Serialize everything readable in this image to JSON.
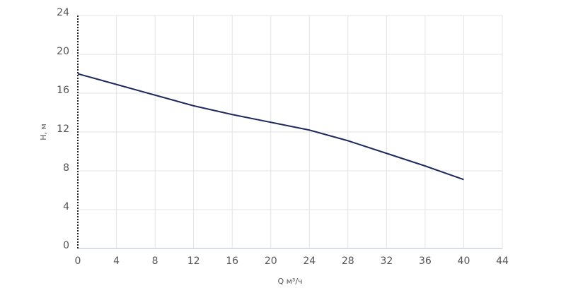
{
  "chart_data": {
    "type": "line",
    "x_label": "Q м³/ч",
    "y_label": "H, м",
    "x": [
      0,
      4,
      8,
      12,
      16,
      20,
      24,
      28,
      32,
      36,
      40
    ],
    "series": [
      {
        "color": "#1f2a5c",
        "values": [
          18,
          16.9,
          15.8,
          14.7,
          13.8,
          13.0,
          12.2,
          11.1,
          9.8,
          8.5,
          7.1
        ]
      }
    ],
    "xlim": [
      0,
      44
    ],
    "xticks": [
      0,
      4,
      8,
      12,
      16,
      20,
      24,
      28,
      32,
      36,
      40,
      44
    ],
    "ylim": [
      0,
      24
    ],
    "yticks": [
      0,
      4,
      8,
      12,
      16,
      20,
      24
    ],
    "grid": true
  }
}
